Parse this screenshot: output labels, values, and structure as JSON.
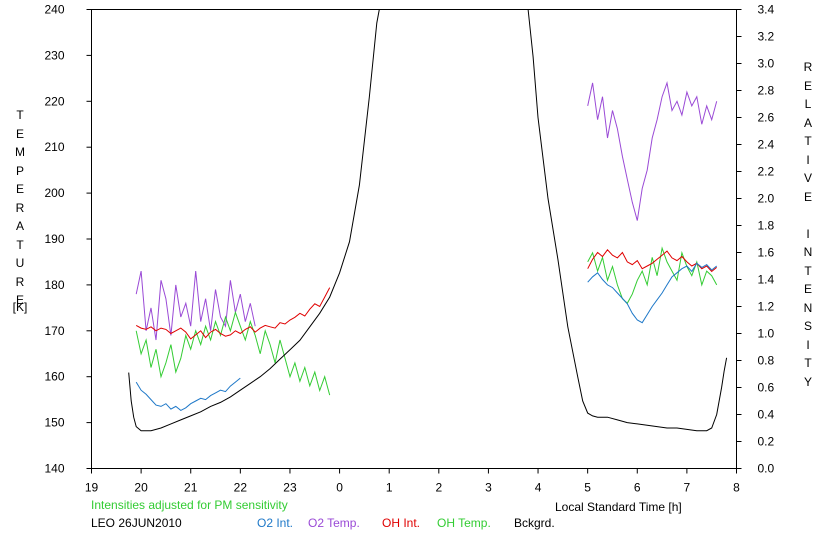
{
  "chart_data": {
    "type": "line",
    "title": "LEO 26JUN2010",
    "xlabel": "Local Standard Time [h]",
    "ylabel_left": "TEMPERATURE",
    "ylabel_left_unit": "[K]",
    "ylabel_right": "RELATIVE INTENSITY",
    "note": "Intensities adjusted for PM sensitivity",
    "colors": {
      "o2_int": "#1e78c8",
      "o2_temp": "#9a4ad6",
      "oh_int": "#e00000",
      "oh_temp": "#33cc33",
      "bckgrd": "#000000"
    },
    "x_range": [
      19,
      32
    ],
    "x_ticks": [
      "19",
      "20",
      "21",
      "22",
      "23",
      "0",
      "1",
      "2",
      "3",
      "4",
      "5",
      "6",
      "7",
      "8"
    ],
    "y_left_range": [
      140,
      240
    ],
    "y_left_ticks": [
      "140",
      "150",
      "160",
      "170",
      "180",
      "190",
      "200",
      "210",
      "220",
      "230",
      "240"
    ],
    "y_right_range": [
      0.0,
      3.4
    ],
    "y_right_ticks": [
      "0.0",
      "0.2",
      "0.4",
      "0.6",
      "0.8",
      "1.0",
      "1.2",
      "1.4",
      "1.6",
      "1.8",
      "2.0",
      "2.2",
      "2.4",
      "2.6",
      "2.8",
      "3.0",
      "3.2",
      "3.4"
    ],
    "legend": [
      "O2 Int.",
      "O2 Temp.",
      "OH Int.",
      "OH Temp.",
      "Bckgrd."
    ],
    "legend_position": "bottom",
    "series": [
      {
        "name": "O2 Temp.",
        "axis": "left",
        "color": "#9a4ad6",
        "x": [
          19.9,
          20.0,
          20.1,
          20.2,
          20.3,
          20.4,
          20.5,
          20.6,
          20.7,
          20.8,
          20.9,
          21.0,
          21.1,
          21.2,
          21.3,
          21.4,
          21.5,
          21.6,
          21.7,
          21.8,
          21.9,
          22.0,
          22.1,
          22.2,
          22.3,
          29.0,
          29.1,
          29.2,
          29.3,
          29.4,
          29.5,
          29.6,
          29.7,
          29.8,
          29.9,
          30.0,
          30.1,
          30.2,
          30.3,
          30.4,
          30.5,
          30.6,
          30.7,
          30.8,
          30.9,
          31.0,
          31.1,
          31.2,
          31.3,
          31.4,
          31.5,
          31.6
        ],
        "y": [
          178,
          183,
          170,
          175,
          168,
          181,
          177,
          169,
          180,
          173,
          176,
          171,
          183,
          172,
          177,
          170,
          179,
          173,
          171,
          181,
          174,
          178,
          172,
          176,
          171,
          219,
          224,
          216,
          221,
          212,
          218,
          214,
          208,
          203,
          198,
          194,
          201,
          205,
          212,
          216,
          221,
          224,
          218,
          220,
          217,
          222,
          219,
          221,
          215,
          219,
          216,
          220
        ]
      },
      {
        "name": "OH Temp.",
        "axis": "left",
        "color": "#33cc33",
        "x": [
          19.9,
          20.0,
          20.1,
          20.2,
          20.3,
          20.4,
          20.5,
          20.6,
          20.7,
          20.8,
          20.9,
          21.0,
          21.1,
          21.2,
          21.3,
          21.4,
          21.5,
          21.6,
          21.7,
          21.8,
          21.9,
          22.0,
          22.1,
          22.2,
          22.3,
          22.4,
          22.5,
          22.6,
          22.7,
          22.8,
          22.9,
          23.0,
          23.1,
          23.2,
          23.3,
          23.4,
          23.5,
          23.6,
          23.7,
          23.8,
          29.0,
          29.1,
          29.2,
          29.3,
          29.4,
          29.5,
          29.6,
          29.7,
          29.8,
          29.9,
          30.0,
          30.1,
          30.2,
          30.3,
          30.4,
          30.5,
          30.6,
          30.7,
          30.8,
          30.9,
          31.0,
          31.1,
          31.2,
          31.3,
          31.4,
          31.5,
          31.6
        ],
        "y": [
          170,
          165,
          168,
          162,
          166,
          160,
          163,
          167,
          161,
          164,
          169,
          166,
          170,
          167,
          171,
          168,
          172,
          169,
          173,
          170,
          174,
          171,
          168,
          172,
          169,
          165,
          170,
          167,
          163,
          168,
          164,
          160,
          163,
          159,
          162,
          158,
          161,
          157,
          160,
          156,
          185,
          187,
          183,
          186,
          181,
          184,
          180,
          177,
          176,
          178,
          181,
          183,
          180,
          186,
          182,
          188,
          185,
          183,
          181,
          187,
          184,
          182,
          185,
          180,
          183,
          182,
          180
        ]
      },
      {
        "name": "OH Int.",
        "axis": "right",
        "color": "#e00000",
        "x": [
          19.9,
          20.0,
          20.1,
          20.2,
          20.3,
          20.4,
          20.5,
          20.6,
          20.7,
          20.8,
          20.9,
          21.0,
          21.1,
          21.2,
          21.3,
          21.4,
          21.5,
          21.6,
          21.7,
          21.8,
          21.9,
          22.0,
          22.1,
          22.2,
          22.3,
          22.4,
          22.5,
          22.6,
          22.7,
          22.8,
          22.9,
          23.0,
          23.1,
          23.2,
          23.3,
          23.4,
          23.5,
          23.6,
          23.7,
          23.8,
          29.0,
          29.1,
          29.2,
          29.3,
          29.4,
          29.5,
          29.6,
          29.7,
          29.8,
          29.9,
          30.0,
          30.1,
          30.2,
          30.3,
          30.4,
          30.5,
          30.6,
          30.7,
          30.8,
          30.9,
          31.0,
          31.1,
          31.2,
          31.3,
          31.4,
          31.5,
          31.6
        ],
        "y": [
          1.06,
          1.04,
          1.03,
          1.05,
          1.02,
          1.04,
          1.03,
          1.0,
          1.02,
          1.04,
          1.01,
          0.96,
          0.99,
          1.02,
          0.97,
          1.01,
          1.03,
          1.0,
          0.98,
          0.99,
          1.02,
          1.0,
          1.03,
          1.05,
          1.01,
          1.04,
          1.06,
          1.05,
          1.04,
          1.08,
          1.07,
          1.1,
          1.12,
          1.15,
          1.13,
          1.18,
          1.22,
          1.2,
          1.27,
          1.34,
          1.48,
          1.55,
          1.6,
          1.57,
          1.62,
          1.58,
          1.56,
          1.6,
          1.53,
          1.51,
          1.54,
          1.48,
          1.5,
          1.52,
          1.55,
          1.58,
          1.61,
          1.56,
          1.54,
          1.57,
          1.53,
          1.5,
          1.52,
          1.48,
          1.5,
          1.46,
          1.49
        ]
      },
      {
        "name": "O2 Int.",
        "axis": "right",
        "color": "#1e78c8",
        "x": [
          19.9,
          20.0,
          20.1,
          20.2,
          20.3,
          20.4,
          20.5,
          20.6,
          20.7,
          20.8,
          20.9,
          21.0,
          21.1,
          21.2,
          21.3,
          21.4,
          21.5,
          21.6,
          21.7,
          21.8,
          21.9,
          22.0,
          29.0,
          29.1,
          29.2,
          29.3,
          29.4,
          29.5,
          29.6,
          29.7,
          29.8,
          29.9,
          30.0,
          30.1,
          30.2,
          30.3,
          30.4,
          30.5,
          30.6,
          30.7,
          30.8,
          30.9,
          31.0,
          31.1,
          31.2,
          31.3,
          31.4,
          31.5,
          31.6
        ],
        "y": [
          0.64,
          0.58,
          0.55,
          0.51,
          0.47,
          0.46,
          0.48,
          0.44,
          0.46,
          0.43,
          0.45,
          0.48,
          0.5,
          0.52,
          0.51,
          0.54,
          0.56,
          0.58,
          0.57,
          0.61,
          0.64,
          0.67,
          1.38,
          1.42,
          1.45,
          1.4,
          1.36,
          1.34,
          1.3,
          1.26,
          1.22,
          1.15,
          1.1,
          1.08,
          1.14,
          1.2,
          1.25,
          1.3,
          1.36,
          1.42,
          1.45,
          1.48,
          1.5,
          1.46,
          1.52,
          1.49,
          1.51,
          1.47,
          1.5
        ]
      },
      {
        "name": "Bckgrd.",
        "axis": "right",
        "color": "#000000",
        "x": [
          19.75,
          19.8,
          19.85,
          19.9,
          20.0,
          20.2,
          20.4,
          20.6,
          20.8,
          21.0,
          21.2,
          21.4,
          21.6,
          21.8,
          22.0,
          22.2,
          22.4,
          22.6,
          22.8,
          23.0,
          23.2,
          23.4,
          23.6,
          23.8,
          24.0,
          24.2,
          24.4,
          24.6,
          24.75,
          24.8,
          27.8,
          27.9,
          28.0,
          28.2,
          28.4,
          28.6,
          28.8,
          28.9,
          29.0,
          29.1,
          29.2,
          29.4,
          29.6,
          29.8,
          30.0,
          30.2,
          30.4,
          30.6,
          30.8,
          31.0,
          31.2,
          31.4,
          31.5,
          31.6,
          31.7,
          31.75,
          31.8
        ],
        "y": [
          0.71,
          0.5,
          0.38,
          0.31,
          0.28,
          0.28,
          0.3,
          0.33,
          0.36,
          0.39,
          0.42,
          0.46,
          0.49,
          0.53,
          0.58,
          0.63,
          0.68,
          0.74,
          0.81,
          0.88,
          0.95,
          1.05,
          1.15,
          1.27,
          1.45,
          1.68,
          2.1,
          2.75,
          3.3,
          3.4,
          3.4,
          3.05,
          2.6,
          2.0,
          1.55,
          1.05,
          0.68,
          0.5,
          0.41,
          0.39,
          0.38,
          0.38,
          0.36,
          0.34,
          0.33,
          0.32,
          0.31,
          0.3,
          0.3,
          0.29,
          0.28,
          0.28,
          0.3,
          0.4,
          0.6,
          0.72,
          0.82
        ]
      }
    ]
  }
}
